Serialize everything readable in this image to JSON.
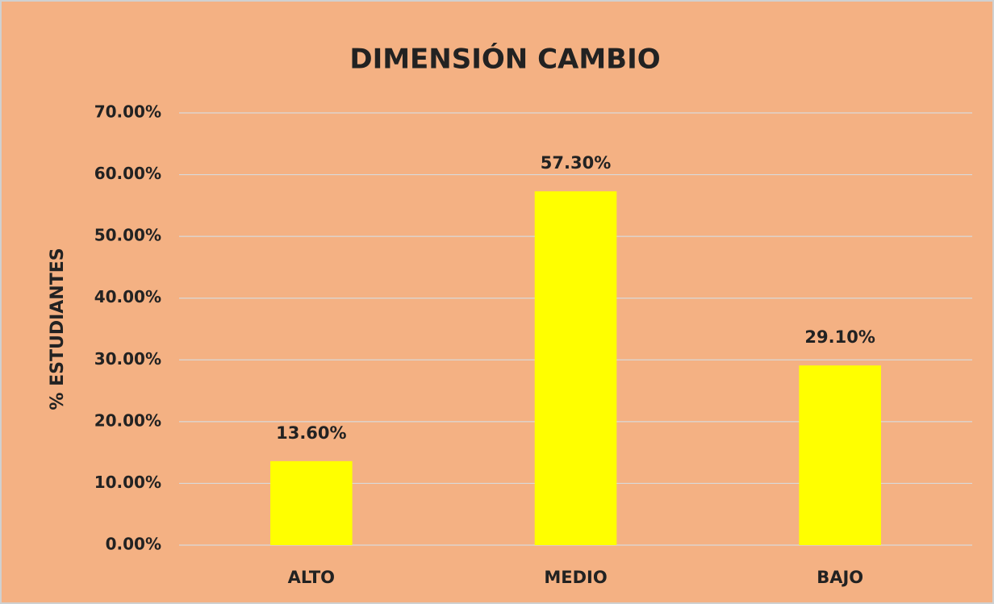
{
  "chart_data": {
    "type": "bar",
    "title": "DIMENSIÓN CAMBIO",
    "y_label": "% ESTUDIANTES",
    "categories": [
      "ALTO",
      "MEDIO",
      "BAJO"
    ],
    "values": [
      13.6,
      57.3,
      29.1
    ],
    "value_labels": [
      "13.60%",
      "57.30%",
      "29.10%"
    ],
    "color": "#ffff00",
    "ylim": [
      0,
      70
    ],
    "yticks": [
      {
        "value": 0,
        "label": "0.00%"
      },
      {
        "value": 10,
        "label": "10.00%"
      },
      {
        "value": 20,
        "label": "20.00%"
      },
      {
        "value": 30,
        "label": "30.00%"
      },
      {
        "value": 40,
        "label": "40.00%"
      },
      {
        "value": 50,
        "label": "50.00%"
      },
      {
        "value": 60,
        "label": "60.00%"
      },
      {
        "value": 70,
        "label": "70.00%"
      }
    ],
    "grid": true
  }
}
